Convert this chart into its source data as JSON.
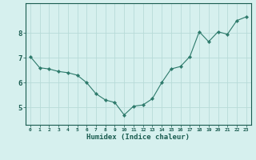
{
  "x": [
    0,
    1,
    2,
    3,
    4,
    5,
    6,
    7,
    8,
    9,
    10,
    11,
    12,
    13,
    14,
    15,
    16,
    17,
    18,
    19,
    20,
    21,
    22,
    23
  ],
  "y": [
    7.05,
    6.6,
    6.55,
    6.45,
    6.4,
    6.3,
    6.0,
    5.55,
    5.3,
    5.2,
    4.7,
    5.05,
    5.1,
    5.35,
    6.0,
    6.55,
    6.65,
    7.05,
    8.05,
    7.65,
    8.05,
    7.95,
    8.5,
    8.65
  ],
  "line_color": "#2d7a6b",
  "marker": "D",
  "marker_size": 2.2,
  "bg_color": "#d6f0ee",
  "grid_color": "#b8dbd8",
  "axis_color": "#1a5c50",
  "xlabel": "Humidex (Indice chaleur)",
  "xlabel_fontsize": 6.5,
  "yticks": [
    5,
    6,
    7,
    8
  ],
  "xticks": [
    0,
    1,
    2,
    3,
    4,
    5,
    6,
    7,
    8,
    9,
    10,
    11,
    12,
    13,
    14,
    15,
    16,
    17,
    18,
    19,
    20,
    21,
    22,
    23
  ],
  "ylim": [
    4.3,
    9.2
  ],
  "xlim": [
    -0.5,
    23.5
  ]
}
